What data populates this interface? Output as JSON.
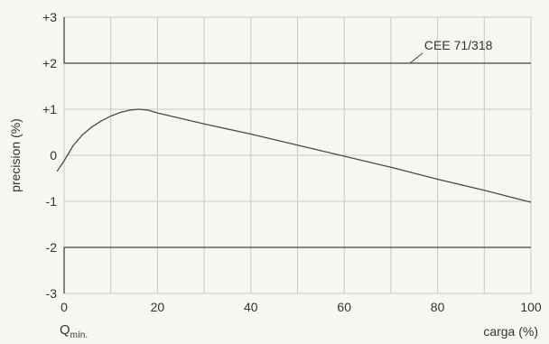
{
  "chart_data": {
    "type": "line",
    "xlabel": "carga (%)",
    "ylabel": "precision (%)",
    "xlim": [
      0,
      100
    ],
    "ylim": [
      -3,
      3
    ],
    "grid": true,
    "x_ticks": [
      0,
      20,
      40,
      60,
      80,
      100
    ],
    "y_ticks": [
      3,
      2,
      1,
      0,
      -1,
      -2,
      -3
    ],
    "y_tick_labels": [
      "+3",
      "+2",
      "+1",
      "0",
      "-1",
      "-2",
      "-3"
    ],
    "x_extra_label": {
      "main": "Q",
      "sub": "mín."
    },
    "series": [
      {
        "x": [
          -1.5,
          0,
          1,
          2,
          4,
          6,
          8,
          10,
          12,
          14,
          16,
          18,
          20,
          30,
          40,
          50,
          60,
          70,
          80,
          90,
          100
        ],
        "y": [
          -0.35,
          -0.12,
          0.05,
          0.22,
          0.45,
          0.62,
          0.75,
          0.85,
          0.93,
          0.98,
          1.0,
          0.98,
          0.92,
          0.68,
          0.46,
          0.22,
          -0.02,
          -0.26,
          -0.52,
          -0.76,
          -1.02
        ]
      }
    ],
    "limits": [
      {
        "y": 2,
        "x_start": 0,
        "x_end": 100
      },
      {
        "y": -2,
        "x_start": 0,
        "x_end": 100
      }
    ],
    "annotation": {
      "text": "CEE 71/318",
      "x": 76,
      "y": 2
    }
  }
}
